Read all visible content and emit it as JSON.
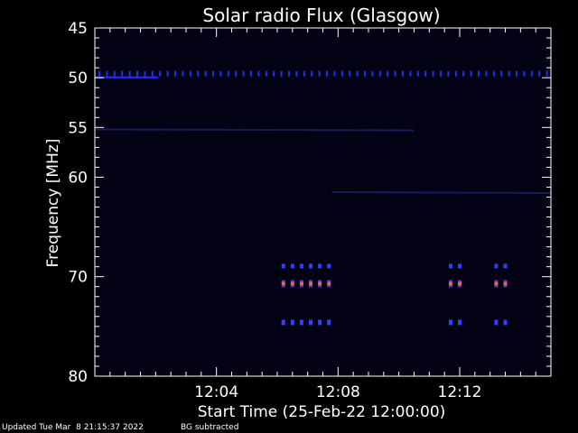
{
  "chart_data": {
    "type": "heatmap",
    "title": "Solar radio Flux (Glasgow)",
    "xlabel": "Start Time (25-Feb-22 12:00:00)",
    "ylabel": "Frequency [MHz]",
    "x_unit": "minutes after 12:00:00",
    "xlim": [
      0,
      15
    ],
    "ylim": [
      45,
      80
    ],
    "x_ticks": [
      {
        "value": 4,
        "label": "12:04"
      },
      {
        "value": 8,
        "label": "12:08"
      },
      {
        "value": 12,
        "label": "12:12"
      }
    ],
    "y_ticks": [
      {
        "value": 45,
        "label": "45"
      },
      {
        "value": 50,
        "label": "50"
      },
      {
        "value": 55,
        "label": "55"
      },
      {
        "value": 60,
        "label": "60"
      },
      {
        "value": 70,
        "label": "70"
      },
      {
        "value": 80,
        "label": "80"
      }
    ],
    "features": [
      {
        "kind": "dotted_band",
        "freq": 49.6,
        "t_start": 0,
        "t_end": 15
      },
      {
        "kind": "faint_line",
        "freq": 55.2,
        "t_start": 0,
        "t_end": 10.5
      },
      {
        "kind": "faint_line",
        "freq": 61.5,
        "t_start": 7.8,
        "t_end": 15
      },
      {
        "kind": "burst_group",
        "freq_center": 70.7,
        "times": [
          6.2,
          6.5,
          6.8,
          7.1,
          7.4,
          7.7
        ]
      },
      {
        "kind": "burst_group",
        "freq_center": 70.7,
        "times": [
          11.7,
          12.0
        ]
      },
      {
        "kind": "burst_group",
        "freq_center": 70.7,
        "times": [
          13.2,
          13.5
        ]
      }
    ]
  },
  "footer": {
    "updated": "Updated Tue Mar  8 21:15:37 2022",
    "note": "BG subtracted"
  },
  "colors": {
    "background": "#000000",
    "plot_bg": "#020213",
    "axis": "#ffffff",
    "band": "#2a2aff",
    "burst_core": "#ff6040",
    "burst_edge": "#3040ff"
  }
}
